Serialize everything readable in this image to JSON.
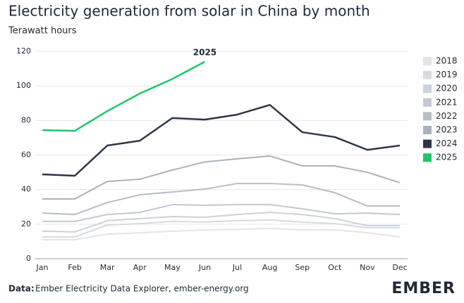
{
  "chart_data": {
    "type": "line",
    "title": "Electricity generation from solar in China by month",
    "subtitle": "Terawatt hours",
    "categories": [
      "Jan",
      "Feb",
      "Mar",
      "Apr",
      "May",
      "Jun",
      "Jul",
      "Aug",
      "Sep",
      "Oct",
      "Nov",
      "Dec"
    ],
    "series": [
      {
        "name": "2018",
        "color": "#e1e4e8",
        "values": [
          11,
          11,
          14.2,
          15,
          15.9,
          16.7,
          17,
          17.5,
          16.7,
          16.7,
          15,
          12.6
        ]
      },
      {
        "name": "2019",
        "color": "#d6dae0",
        "values": [
          12.6,
          12.6,
          19.5,
          20.3,
          21.6,
          21.2,
          22,
          22.4,
          21.2,
          20.3,
          17.9,
          17.9
        ]
      },
      {
        "name": "2020",
        "color": "#cdd1d8",
        "values": [
          15.9,
          15.5,
          22,
          23.2,
          24.4,
          24,
          25.6,
          26.8,
          25.6,
          23.2,
          19.1,
          19.1
        ]
      },
      {
        "name": "2021",
        "color": "#c3c8d0",
        "values": [
          21.6,
          21.6,
          25.6,
          26.8,
          31.3,
          30.9,
          31.3,
          31.3,
          28.9,
          26,
          26.4,
          25.6
        ]
      },
      {
        "name": "2022",
        "color": "#b7bcc6",
        "values": [
          26.4,
          25.6,
          32.5,
          37,
          38.6,
          40.3,
          43.5,
          43.5,
          42.7,
          38.2,
          30.5,
          30.5
        ]
      },
      {
        "name": "2023",
        "color": "#abb1bc",
        "values": [
          34.6,
          34.6,
          44.7,
          46,
          51.3,
          56,
          57.8,
          59.4,
          53.7,
          53.7,
          50,
          44
        ]
      },
      {
        "name": "2024",
        "color": "#2d3648",
        "values": [
          48.8,
          48,
          65.5,
          68.3,
          81.4,
          80.5,
          83.4,
          89,
          73.2,
          70.4,
          63,
          65.5
        ]
      },
      {
        "name": "2025",
        "color": "#21c56b",
        "values": [
          74.4,
          74,
          85.4,
          95.6,
          104,
          114,
          null,
          null,
          null,
          null,
          null,
          null
        ]
      }
    ],
    "ylim": [
      0,
      120
    ],
    "yticks": [
      0,
      20,
      40,
      60,
      80,
      100,
      120
    ],
    "grid": true,
    "legend": "right",
    "source_label": "Data:",
    "source": "Ember Electricity Data Explorer, ember-energy.org",
    "logo": "EMBER"
  }
}
